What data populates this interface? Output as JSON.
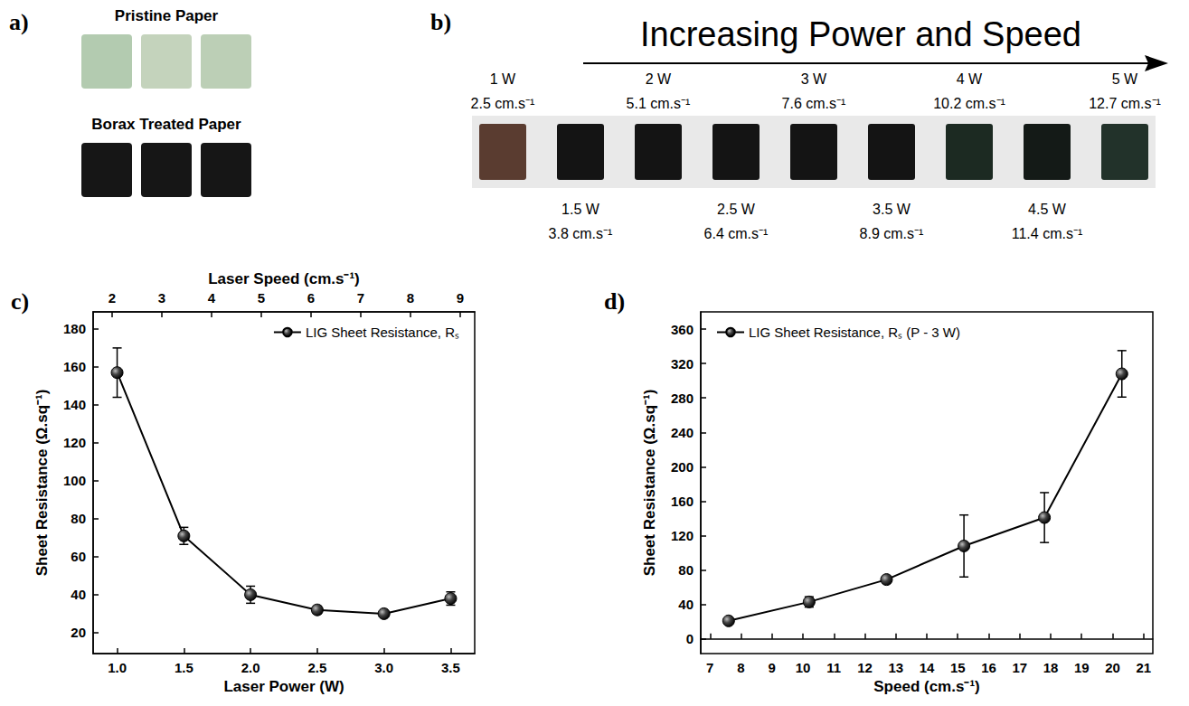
{
  "panel_a": {
    "letter": "a)",
    "groups": [
      {
        "label": "Pristine Paper",
        "colors": [
          "#b3cbb0",
          "#c4d3bc",
          "#bccfb6"
        ]
      },
      {
        "label": "Borax Treated Paper",
        "colors": [
          "#161616",
          "#161616",
          "#161616"
        ]
      }
    ]
  },
  "panel_b": {
    "letter": "b)",
    "title": "Increasing Power and Speed",
    "samples": [
      {
        "power": "1 W",
        "speed": "2.5 cm.s⁻¹",
        "color": "#5a3c30"
      },
      {
        "power": "1.5 W",
        "speed": "3.8 cm.s⁻¹",
        "color": "#141414"
      },
      {
        "power": "2 W",
        "speed": "5.1 cm.s⁻¹",
        "color": "#141414"
      },
      {
        "power": "2.5 W",
        "speed": "6.4 cm.s⁻¹",
        "color": "#141414"
      },
      {
        "power": "3 W",
        "speed": "7.6 cm.s⁻¹",
        "color": "#141414"
      },
      {
        "power": "3.5 W",
        "speed": "8.9 cm.s⁻¹",
        "color": "#141414"
      },
      {
        "power": "4 W",
        "speed": "10.2 cm.s⁻¹",
        "color": "#1c2a22"
      },
      {
        "power": "4.5 W",
        "speed": "11.4 cm.s⁻¹",
        "color": "#141a17"
      },
      {
        "power": "5 W",
        "speed": "12.7 cm.s⁻¹",
        "color": "#22322a"
      }
    ]
  },
  "chart_data": [
    {
      "letter": "c)",
      "type": "line",
      "xlabel": "Laser Power (W)",
      "x2label": "Laser Speed (cm.s⁻¹)",
      "ylabel": "Sheet Resistance (Ω.sq⁻¹)",
      "x": [
        1,
        1.5,
        2,
        2.5,
        3,
        3.5
      ],
      "xlim": [
        0.82,
        3.68
      ],
      "xticks": [
        {
          "value": 1,
          "label": "1.0"
        },
        1.5,
        {
          "value": 2,
          "label": "2.0"
        },
        2.5,
        {
          "value": 3,
          "label": "3.0"
        },
        3.5
      ],
      "x2lim": [
        1.62,
        9.29
      ],
      "x2ticks": [
        2,
        3,
        4,
        5,
        6,
        7,
        8,
        9
      ],
      "ylim": [
        9,
        189
      ],
      "yticks": [
        20,
        40,
        60,
        80,
        100,
        120,
        140,
        160,
        180
      ],
      "grid": false,
      "legend": "upper right",
      "series": [
        {
          "name": "LIG Sheet Resistance, Rₛ",
          "color": "#000000",
          "marker": "circle",
          "line_style": "solid",
          "values": [
            157,
            71,
            40,
            32,
            30,
            38
          ],
          "errors": [
            13,
            4.5,
            4.5,
            2,
            1.5,
            3.5
          ]
        }
      ]
    },
    {
      "letter": "d)",
      "type": "line",
      "xlabel": "Speed (cm.s⁻¹)",
      "ylabel": "Sheet Resistance (Ω.sq⁻¹)",
      "x": [
        7.6,
        10.2,
        12.7,
        15.2,
        17.8,
        20.3
      ],
      "xlim": [
        6.7,
        21.3
      ],
      "xticks": [
        7,
        8,
        9,
        10,
        11,
        12,
        13,
        14,
        15,
        16,
        17,
        18,
        19,
        20,
        21
      ],
      "ylim": [
        -17,
        380
      ],
      "yticks": [
        0,
        40,
        80,
        120,
        160,
        200,
        240,
        280,
        320,
        360
      ],
      "grid": false,
      "legend": "upper left",
      "series": [
        {
          "name": "LIG Sheet Resistance, Rₛ (P - 3 W)",
          "color": "#000000",
          "marker": "circle",
          "line_style": "solid",
          "values": [
            21,
            43,
            69,
            108,
            141,
            308
          ],
          "errors": [
            3,
            6,
            4,
            36,
            29,
            27
          ]
        }
      ]
    }
  ]
}
